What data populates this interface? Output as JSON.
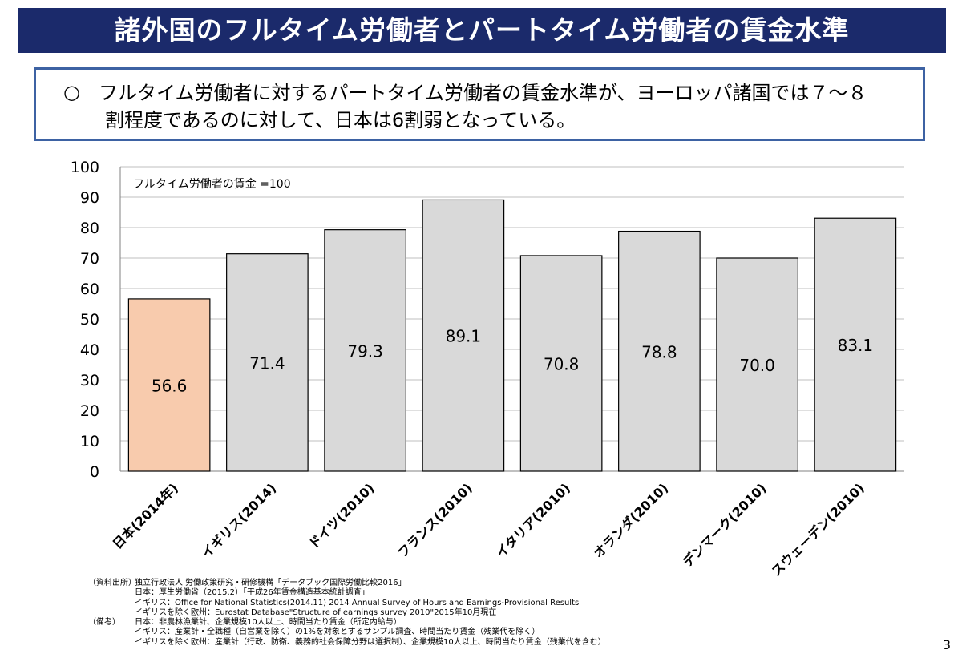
{
  "title": "諸外国のフルタイム労働者とパートタイム労働者の賃金水準",
  "summary": {
    "bullet": "○",
    "line1": "フルタイム労働者に対するパートタイム労働者の賃金水準が、ヨーロッパ諸国では７～８",
    "line2": "割程度であるのに対して、日本は6割弱となっている。"
  },
  "colors": {
    "title_bg": "#1b2a6b",
    "box_border": "#3d62a3",
    "highlight_bar": "#f8cbad",
    "bar": "#d9d9d9"
  },
  "chart_data": {
    "type": "bar",
    "annotation": "フルタイム労働者の賃金 =100",
    "categories": [
      "日本(2014年)",
      "イギリス(2014)",
      "ドイツ(2010)",
      "フランス(2010)",
      "イタリア(2010)",
      "オランダ(2010)",
      "デンマーク(2010)",
      "スウェーデン(2010)"
    ],
    "values": [
      56.6,
      71.4,
      79.3,
      89.1,
      70.8,
      78.8,
      70.0,
      83.1
    ],
    "value_labels": [
      "56.6",
      "71.4",
      "79.3",
      "89.1",
      "70.8",
      "78.8",
      "70.0",
      "83.1"
    ],
    "highlight_index": 0,
    "ylim": [
      0,
      100
    ],
    "yticks": [
      0,
      10,
      20,
      30,
      40,
      50,
      60,
      70,
      80,
      90,
      100
    ],
    "grid": true,
    "xlabel": "",
    "ylabel": ""
  },
  "footnotes": [
    {
      "label": "（資料出所）",
      "text": "独立行政法人 労働政策研究・研修機構「データブック国際労働比較2016」"
    },
    {
      "label": "",
      "text": "日本：厚生労働省（2015.2）「平成26年賃金構造基本統計調査」"
    },
    {
      "label": "",
      "text": "イギリス：Office for National Statistics(2014.11) 2014 Annual Survey of  Hours and Earnings-Provisional Results"
    },
    {
      "label": "",
      "text": "イギリスを除く欧州：Eurostat Database\"Structure of earnings survey 2010\"2015年10月現在"
    },
    {
      "label": "（備考）",
      "text": "日本：非農林漁業計、企業規模10人以上、時間当たり賃金（所定内給与）"
    },
    {
      "label": "",
      "text": "イギリス：産業計・全職種（自営業を除く）の1%を対象とするサンプル調査、時間当たり賃金（残業代を除く）"
    },
    {
      "label": "",
      "text": "イギリスを除く欧州：産業計（行政、防衛、義務的社会保障分野は選択制）、企業規模10人以上、時間当たり賃金（残業代を含む）"
    }
  ],
  "page_number": "3"
}
